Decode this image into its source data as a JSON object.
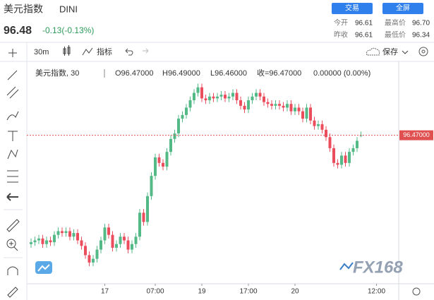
{
  "header": {
    "name": "美元指数",
    "symbol": "DINI",
    "price": "96.48",
    "change": "-0.13(-0.13%)",
    "buttons": [
      "交易",
      "全屏"
    ],
    "stats": [
      {
        "label": "今开",
        "value": "96.61"
      },
      {
        "label": "最高价",
        "value": "96.70"
      },
      {
        "label": "昨收",
        "value": "96.61"
      },
      {
        "label": "最低价",
        "value": "96.34"
      }
    ]
  },
  "toolbar": {
    "interval": "30m",
    "indicators": "指标",
    "save": "保存"
  },
  "legend": {
    "series": "美元指数, 30",
    "open": "O96.47000",
    "high": "H96.49000",
    "low": "L96.46000",
    "close": "收=96.47000",
    "change": "0.00000 (0.00%)"
  },
  "watermark": "FX168",
  "chart_data": {
    "type": "candlestick",
    "categories": [
      null,
      null,
      null,
      null,
      null,
      null,
      null,
      null,
      null,
      null,
      null,
      null,
      null,
      null,
      null,
      null,
      null,
      null,
      null,
      "17",
      null,
      null,
      null,
      null,
      null,
      null,
      null,
      null,
      null,
      null,
      null,
      null,
      "07:00",
      null,
      null,
      null,
      null,
      null,
      null,
      null,
      null,
      null,
      null,
      null,
      "19",
      null,
      null,
      null,
      null,
      null,
      null,
      null,
      null,
      null,
      null,
      null,
      "17:00",
      null,
      null,
      null,
      null,
      null,
      null,
      null,
      null,
      null,
      null,
      null,
      "20",
      null,
      null,
      null,
      null,
      null,
      null,
      null,
      null,
      null,
      null,
      null,
      null,
      null,
      null,
      null,
      null,
      null,
      null,
      null,
      null,
      "12:00"
    ],
    "open": [
      95.88,
      95.89,
      95.9,
      95.91,
      95.88,
      95.9,
      95.89,
      95.93,
      95.95,
      95.94,
      95.95,
      95.92,
      95.94,
      95.9,
      95.87,
      95.82,
      95.78,
      95.8,
      95.85,
      95.9,
      95.97,
      95.93,
      95.86,
      95.88,
      95.92,
      95.9,
      95.85,
      95.88,
      95.92,
      96.05,
      96.0,
      96.14,
      96.25,
      96.35,
      96.32,
      96.3,
      96.38,
      96.45,
      96.48,
      96.56,
      96.58,
      96.62,
      96.66,
      96.7,
      96.73,
      96.67,
      96.66,
      96.68,
      96.67,
      96.68,
      96.69,
      96.67,
      96.68,
      96.7,
      96.66,
      96.63,
      96.61,
      96.66,
      96.68,
      96.7,
      96.68,
      96.65,
      96.64,
      96.63,
      96.64,
      96.63,
      96.62,
      96.64,
      96.6,
      96.62,
      96.6,
      96.56,
      96.62,
      96.55,
      96.52,
      96.53,
      96.5,
      96.46,
      96.4,
      96.32,
      96.31,
      96.36,
      96.32,
      96.38,
      96.4,
      96.47,
      null,
      null,
      null,
      null
    ],
    "high": [
      95.91,
      95.92,
      95.93,
      95.93,
      95.92,
      95.92,
      95.95,
      95.97,
      95.97,
      95.97,
      95.97,
      95.96,
      95.96,
      95.92,
      95.89,
      95.84,
      95.82,
      95.87,
      95.92,
      95.99,
      95.99,
      95.95,
      95.9,
      95.94,
      95.94,
      95.92,
      95.9,
      95.94,
      96.07,
      96.07,
      96.16,
      96.27,
      96.37,
      96.37,
      96.34,
      96.4,
      96.47,
      96.5,
      96.58,
      96.6,
      96.64,
      96.68,
      96.72,
      96.75,
      96.75,
      96.69,
      96.7,
      96.7,
      96.7,
      96.71,
      96.71,
      96.7,
      96.72,
      96.72,
      96.68,
      96.65,
      96.68,
      96.7,
      96.72,
      96.72,
      96.7,
      96.67,
      96.66,
      96.66,
      96.66,
      96.65,
      96.66,
      96.66,
      96.64,
      96.64,
      96.62,
      96.64,
      96.64,
      96.57,
      96.55,
      96.55,
      96.52,
      96.48,
      96.42,
      96.34,
      96.38,
      96.38,
      96.4,
      96.42,
      96.46,
      96.49,
      null,
      null,
      null,
      null
    ],
    "low": [
      95.86,
      95.87,
      95.88,
      95.86,
      95.86,
      95.87,
      95.87,
      95.91,
      95.92,
      95.92,
      95.9,
      95.9,
      95.88,
      95.85,
      95.8,
      95.76,
      95.76,
      95.78,
      95.83,
      95.88,
      95.91,
      95.84,
      95.84,
      95.86,
      95.88,
      95.83,
      95.83,
      95.86,
      95.9,
      95.98,
      95.98,
      96.12,
      96.23,
      96.3,
      96.28,
      96.28,
      96.36,
      96.43,
      96.46,
      96.54,
      96.56,
      96.6,
      96.64,
      96.68,
      96.65,
      96.64,
      96.64,
      96.65,
      96.65,
      96.66,
      96.65,
      96.65,
      96.66,
      96.64,
      96.61,
      96.59,
      96.59,
      96.64,
      96.66,
      96.66,
      96.63,
      96.62,
      96.61,
      96.61,
      96.61,
      96.6,
      96.6,
      96.58,
      96.58,
      96.58,
      96.54,
      96.54,
      96.53,
      96.5,
      96.5,
      96.48,
      96.44,
      96.38,
      96.3,
      96.29,
      96.29,
      96.3,
      96.3,
      96.36,
      96.38,
      96.46,
      null,
      null,
      null,
      null
    ],
    "close": [
      95.89,
      95.9,
      95.91,
      95.88,
      95.9,
      95.89,
      95.93,
      95.95,
      95.94,
      95.95,
      95.92,
      95.94,
      95.9,
      95.87,
      95.82,
      95.78,
      95.8,
      95.85,
      95.9,
      95.97,
      95.93,
      95.86,
      95.88,
      95.92,
      95.9,
      95.85,
      95.88,
      95.92,
      96.05,
      96.0,
      96.14,
      96.25,
      96.35,
      96.32,
      96.3,
      96.38,
      96.45,
      96.48,
      96.56,
      96.58,
      96.62,
      96.66,
      96.7,
      96.73,
      96.67,
      96.66,
      96.68,
      96.67,
      96.68,
      96.69,
      96.67,
      96.68,
      96.7,
      96.66,
      96.63,
      96.61,
      96.66,
      96.68,
      96.7,
      96.68,
      96.65,
      96.64,
      96.63,
      96.64,
      96.63,
      96.62,
      96.64,
      96.6,
      96.62,
      96.6,
      96.56,
      96.62,
      96.55,
      96.52,
      96.53,
      96.5,
      96.46,
      96.4,
      96.32,
      96.31,
      96.36,
      96.32,
      96.38,
      96.4,
      96.44,
      96.47,
      null,
      null,
      null,
      null
    ],
    "up_color": "#53b987",
    "down_color": "#eb4d5c",
    "ylim": [
      95.68,
      96.84
    ],
    "price_line": {
      "value": 96.47,
      "label": "96.47000"
    },
    "price_line_color": "#e05050"
  }
}
